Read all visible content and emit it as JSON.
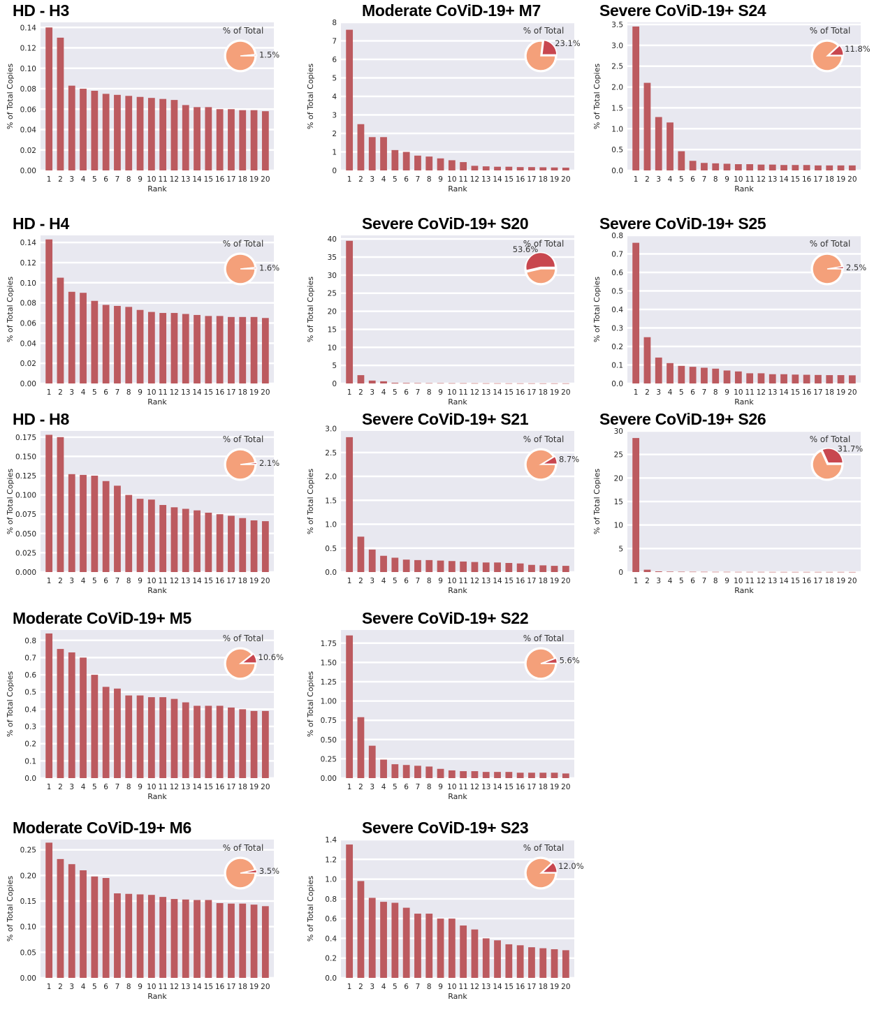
{
  "colors": {
    "bar": "#bc5a5f",
    "background": "#e8e8f0",
    "pie_main": "#f4a07a",
    "pie_slice": "#c8474f"
  },
  "chart_data": [
    {
      "type": "bar",
      "title": "HD - H3",
      "xlabel": "Rank",
      "ylabel": "% of Total Copies",
      "categories": [
        "1",
        "2",
        "3",
        "4",
        "5",
        "6",
        "7",
        "8",
        "9",
        "10",
        "11",
        "12",
        "13",
        "14",
        "15",
        "16",
        "17",
        "18",
        "19",
        "20"
      ],
      "values": [
        0.14,
        0.13,
        0.083,
        0.08,
        0.078,
        0.075,
        0.074,
        0.073,
        0.072,
        0.071,
        0.07,
        0.069,
        0.064,
        0.062,
        0.062,
        0.06,
        0.06,
        0.059,
        0.059,
        0.058
      ],
      "ylim": [
        0,
        0.145
      ],
      "yticks": [
        "0.00",
        "0.02",
        "0.04",
        "0.06",
        "0.08",
        "0.10",
        "0.12",
        "0.14"
      ],
      "ytick_values": [
        0,
        0.02,
        0.04,
        0.06,
        0.08,
        0.1,
        0.12,
        0.14
      ],
      "inset_pie": {
        "title": "% of Total",
        "percent": 1.5,
        "label": "1.5%"
      }
    },
    {
      "type": "bar",
      "title": "Moderate CoViD-19+ M7",
      "xlabel": "Rank",
      "ylabel": "% of Total Copies",
      "categories": [
        "1",
        "2",
        "3",
        "4",
        "5",
        "6",
        "7",
        "8",
        "9",
        "10",
        "11",
        "12",
        "13",
        "14",
        "15",
        "16",
        "17",
        "18",
        "19",
        "20"
      ],
      "values": [
        7.6,
        2.5,
        1.8,
        1.8,
        1.1,
        1.0,
        0.8,
        0.75,
        0.65,
        0.55,
        0.45,
        0.25,
        0.22,
        0.2,
        0.2,
        0.18,
        0.18,
        0.17,
        0.16,
        0.15
      ],
      "ylim": [
        0,
        8
      ],
      "yticks": [
        "0",
        "1",
        "2",
        "3",
        "4",
        "5",
        "6",
        "7",
        "8"
      ],
      "ytick_values": [
        0,
        1,
        2,
        3,
        4,
        5,
        6,
        7,
        8
      ],
      "inset_pie": {
        "title": "% of Total",
        "percent": 23.1,
        "label": "23.1%"
      }
    },
    {
      "type": "bar",
      "title": "Severe CoViD-19+ S24",
      "xlabel": "Rank",
      "ylabel": "% of Total Copies",
      "categories": [
        "1",
        "2",
        "3",
        "4",
        "5",
        "6",
        "7",
        "8",
        "9",
        "10",
        "11",
        "12",
        "13",
        "14",
        "15",
        "16",
        "17",
        "18",
        "19",
        "20"
      ],
      "values": [
        3.45,
        2.1,
        1.28,
        1.15,
        0.46,
        0.23,
        0.18,
        0.17,
        0.16,
        0.15,
        0.15,
        0.14,
        0.14,
        0.13,
        0.13,
        0.13,
        0.12,
        0.12,
        0.12,
        0.12
      ],
      "ylim": [
        0,
        3.55
      ],
      "yticks": [
        "0.0",
        "0.5",
        "1.0",
        "1.5",
        "2.0",
        "2.5",
        "3.0",
        "3.5"
      ],
      "ytick_values": [
        0,
        0.5,
        1,
        1.5,
        2,
        2.5,
        3,
        3.5
      ],
      "inset_pie": {
        "title": "% of Total",
        "percent": 11.8,
        "label": "11.8%"
      }
    },
    {
      "type": "bar",
      "title": "HD - H4",
      "xlabel": "Rank",
      "ylabel": "% of Total Copies",
      "categories": [
        "1",
        "2",
        "3",
        "4",
        "5",
        "6",
        "7",
        "8",
        "9",
        "10",
        "11",
        "12",
        "13",
        "14",
        "15",
        "16",
        "17",
        "18",
        "19",
        "20"
      ],
      "values": [
        0.143,
        0.105,
        0.091,
        0.09,
        0.082,
        0.078,
        0.077,
        0.076,
        0.073,
        0.071,
        0.07,
        0.07,
        0.069,
        0.068,
        0.067,
        0.067,
        0.066,
        0.066,
        0.066,
        0.065
      ],
      "ylim": [
        0,
        0.147
      ],
      "yticks": [
        "0.00",
        "0.02",
        "0.04",
        "0.06",
        "0.08",
        "0.10",
        "0.12",
        "0.14"
      ],
      "ytick_values": [
        0,
        0.02,
        0.04,
        0.06,
        0.08,
        0.1,
        0.12,
        0.14
      ],
      "inset_pie": {
        "title": "% of Total",
        "percent": 1.6,
        "label": "1.6%"
      }
    },
    {
      "type": "bar",
      "title": "Severe CoViD-19+ S20",
      "xlabel": "Rank",
      "ylabel": "% of Total Copies",
      "categories": [
        "1",
        "2",
        "3",
        "4",
        "5",
        "6",
        "7",
        "8",
        "9",
        "10",
        "11",
        "12",
        "13",
        "14",
        "15",
        "16",
        "17",
        "18",
        "19",
        "20"
      ],
      "values": [
        39.5,
        2.3,
        0.8,
        0.6,
        0.2,
        0.15,
        0.12,
        0.1,
        0.1,
        0.08,
        0.08,
        0.07,
        0.06,
        0.06,
        0.05,
        0.05,
        0.05,
        0.04,
        0.04,
        0.04
      ],
      "ylim": [
        0,
        41
      ],
      "yticks": [
        "0",
        "5",
        "10",
        "15",
        "20",
        "25",
        "30",
        "35",
        "40"
      ],
      "ytick_values": [
        0,
        5,
        10,
        15,
        20,
        25,
        30,
        35,
        40
      ],
      "inset_pie": {
        "title": "% of Total",
        "percent": 53.6,
        "label": "53.6%"
      }
    },
    {
      "type": "bar",
      "title": "Severe CoViD-19+ S25",
      "xlabel": "Rank",
      "ylabel": "% of Total Copies",
      "categories": [
        "1",
        "2",
        "3",
        "4",
        "5",
        "6",
        "7",
        "8",
        "9",
        "10",
        "11",
        "12",
        "13",
        "14",
        "15",
        "16",
        "17",
        "18",
        "19",
        "20"
      ],
      "values": [
        0.76,
        0.25,
        0.14,
        0.11,
        0.095,
        0.09,
        0.085,
        0.08,
        0.07,
        0.065,
        0.055,
        0.055,
        0.05,
        0.05,
        0.048,
        0.047,
        0.046,
        0.045,
        0.045,
        0.044
      ],
      "ylim": [
        0,
        0.8
      ],
      "yticks": [
        "0.0",
        "0.1",
        "0.2",
        "0.3",
        "0.4",
        "0.5",
        "0.6",
        "0.7",
        "0.8"
      ],
      "ytick_values": [
        0,
        0.1,
        0.2,
        0.3,
        0.4,
        0.5,
        0.6,
        0.7,
        0.8
      ],
      "inset_pie": {
        "title": "% of Total",
        "percent": 2.5,
        "label": "2.5%"
      }
    },
    {
      "type": "bar",
      "title": "HD - H8",
      "xlabel": "Rank",
      "ylabel": "% of Total Copies",
      "categories": [
        "1",
        "2",
        "3",
        "4",
        "5",
        "6",
        "7",
        "8",
        "9",
        "10",
        "11",
        "12",
        "13",
        "14",
        "15",
        "16",
        "17",
        "18",
        "19",
        "20"
      ],
      "values": [
        0.178,
        0.175,
        0.127,
        0.126,
        0.125,
        0.118,
        0.112,
        0.1,
        0.095,
        0.094,
        0.087,
        0.084,
        0.082,
        0.08,
        0.077,
        0.075,
        0.073,
        0.07,
        0.067,
        0.066
      ],
      "ylim": [
        0,
        0.183
      ],
      "yticks": [
        "0.000",
        "0.025",
        "0.050",
        "0.075",
        "0.100",
        "0.125",
        "0.150",
        "0.175"
      ],
      "ytick_values": [
        0,
        0.025,
        0.05,
        0.075,
        0.1,
        0.125,
        0.15,
        0.175
      ],
      "inset_pie": {
        "title": "% of Total",
        "percent": 2.1,
        "label": "2.1%"
      }
    },
    {
      "type": "bar",
      "title": "Severe CoViD-19+ S21",
      "xlabel": "Rank",
      "ylabel": "% of Total Copies",
      "categories": [
        "1",
        "2",
        "3",
        "4",
        "5",
        "6",
        "7",
        "8",
        "9",
        "10",
        "11",
        "12",
        "13",
        "14",
        "15",
        "16",
        "17",
        "18",
        "19",
        "20"
      ],
      "values": [
        2.82,
        0.74,
        0.47,
        0.34,
        0.3,
        0.26,
        0.25,
        0.25,
        0.24,
        0.23,
        0.22,
        0.21,
        0.2,
        0.2,
        0.19,
        0.18,
        0.15,
        0.14,
        0.13,
        0.13
      ],
      "ylim": [
        0,
        2.95
      ],
      "yticks": [
        "0.0",
        "0.5",
        "1.0",
        "1.5",
        "2.0",
        "2.5",
        "3.0"
      ],
      "ytick_values": [
        0,
        0.5,
        1,
        1.5,
        2,
        2.5,
        3
      ],
      "inset_pie": {
        "title": "% of Total",
        "percent": 8.7,
        "label": "8.7%"
      }
    },
    {
      "type": "bar",
      "title": "Severe CoViD-19+ S26",
      "xlabel": "Rank",
      "ylabel": "% of Total Copies",
      "categories": [
        "1",
        "2",
        "3",
        "4",
        "5",
        "6",
        "7",
        "8",
        "9",
        "10",
        "11",
        "12",
        "13",
        "14",
        "15",
        "16",
        "17",
        "18",
        "19",
        "20"
      ],
      "values": [
        28.5,
        0.5,
        0.15,
        0.1,
        0.08,
        0.07,
        0.06,
        0.05,
        0.05,
        0.04,
        0.04,
        0.04,
        0.03,
        0.03,
        0.03,
        0.03,
        0.03,
        0.03,
        0.03,
        0.02
      ],
      "ylim": [
        0,
        30
      ],
      "yticks": [
        "0",
        "5",
        "10",
        "15",
        "20",
        "25",
        "30"
      ],
      "ytick_values": [
        0,
        5,
        10,
        15,
        20,
        25,
        30
      ],
      "inset_pie": {
        "title": "% of Total",
        "percent": 31.7,
        "label": "31.7%"
      }
    },
    {
      "type": "bar",
      "title": "Moderate CoViD-19+ M5",
      "xlabel": "Rank",
      "ylabel": "% of Total Copies",
      "categories": [
        "1",
        "2",
        "3",
        "4",
        "5",
        "6",
        "7",
        "8",
        "9",
        "10",
        "11",
        "12",
        "13",
        "14",
        "15",
        "16",
        "17",
        "18",
        "19",
        "20"
      ],
      "values": [
        0.84,
        0.75,
        0.73,
        0.7,
        0.6,
        0.53,
        0.52,
        0.48,
        0.48,
        0.47,
        0.47,
        0.46,
        0.44,
        0.42,
        0.42,
        0.42,
        0.41,
        0.4,
        0.39,
        0.39
      ],
      "ylim": [
        0,
        0.86
      ],
      "yticks": [
        "0.0",
        "0.1",
        "0.2",
        "0.3",
        "0.4",
        "0.5",
        "0.6",
        "0.7",
        "0.8"
      ],
      "ytick_values": [
        0,
        0.1,
        0.2,
        0.3,
        0.4,
        0.5,
        0.6,
        0.7,
        0.8
      ],
      "inset_pie": {
        "title": "% of Total",
        "percent": 10.6,
        "label": "10.6%"
      }
    },
    {
      "type": "bar",
      "title": "Severe CoViD-19+ S22",
      "xlabel": "Rank",
      "ylabel": "% of Total Copies",
      "categories": [
        "1",
        "2",
        "3",
        "4",
        "5",
        "6",
        "7",
        "8",
        "9",
        "10",
        "11",
        "12",
        "13",
        "14",
        "15",
        "16",
        "17",
        "18",
        "19",
        "20"
      ],
      "values": [
        1.85,
        0.79,
        0.42,
        0.24,
        0.18,
        0.17,
        0.16,
        0.15,
        0.12,
        0.1,
        0.09,
        0.09,
        0.08,
        0.08,
        0.08,
        0.07,
        0.07,
        0.07,
        0.07,
        0.06
      ],
      "ylim": [
        0,
        1.92
      ],
      "yticks": [
        "0.00",
        "0.25",
        "0.50",
        "0.75",
        "1.00",
        "1.25",
        "1.50",
        "1.75"
      ],
      "ytick_values": [
        0,
        0.25,
        0.5,
        0.75,
        1,
        1.25,
        1.5,
        1.75
      ],
      "inset_pie": {
        "title": "% of Total",
        "percent": 5.6,
        "label": "5.6%"
      }
    },
    {
      "type": "bar",
      "title": "Moderate CoViD-19+ M6",
      "xlabel": "Rank",
      "ylabel": "% of Total Copies",
      "categories": [
        "1",
        "2",
        "3",
        "4",
        "5",
        "6",
        "7",
        "8",
        "9",
        "10",
        "11",
        "12",
        "13",
        "14",
        "15",
        "16",
        "17",
        "18",
        "19",
        "20"
      ],
      "values": [
        0.264,
        0.232,
        0.222,
        0.21,
        0.198,
        0.195,
        0.165,
        0.164,
        0.163,
        0.162,
        0.158,
        0.154,
        0.153,
        0.152,
        0.152,
        0.146,
        0.145,
        0.145,
        0.143,
        0.14
      ],
      "ylim": [
        0,
        0.27
      ],
      "yticks": [
        "0.00",
        "0.05",
        "0.10",
        "0.15",
        "0.20",
        "0.25"
      ],
      "ytick_values": [
        0,
        0.05,
        0.1,
        0.15,
        0.2,
        0.25
      ],
      "inset_pie": {
        "title": "% of Total",
        "percent": 3.5,
        "label": "3.5%"
      }
    },
    {
      "type": "bar",
      "title": "Severe CoViD-19+ S23",
      "xlabel": "Rank",
      "ylabel": "% of Total Copies",
      "categories": [
        "1",
        "2",
        "3",
        "4",
        "5",
        "6",
        "7",
        "8",
        "9",
        "10",
        "11",
        "12",
        "13",
        "14",
        "15",
        "16",
        "17",
        "18",
        "19",
        "20"
      ],
      "values": [
        1.35,
        0.98,
        0.81,
        0.77,
        0.76,
        0.71,
        0.65,
        0.65,
        0.6,
        0.6,
        0.53,
        0.49,
        0.4,
        0.38,
        0.34,
        0.33,
        0.31,
        0.3,
        0.29,
        0.28
      ],
      "ylim": [
        0,
        1.4
      ],
      "yticks": [
        "0.0",
        "0.2",
        "0.4",
        "0.6",
        "0.8",
        "1.0",
        "1.2",
        "1.4"
      ],
      "ytick_values": [
        0,
        0.2,
        0.4,
        0.6,
        0.8,
        1,
        1.2,
        1.4
      ],
      "inset_pie": {
        "title": "% of Total",
        "percent": 12.0,
        "label": "12.0%"
      }
    }
  ]
}
